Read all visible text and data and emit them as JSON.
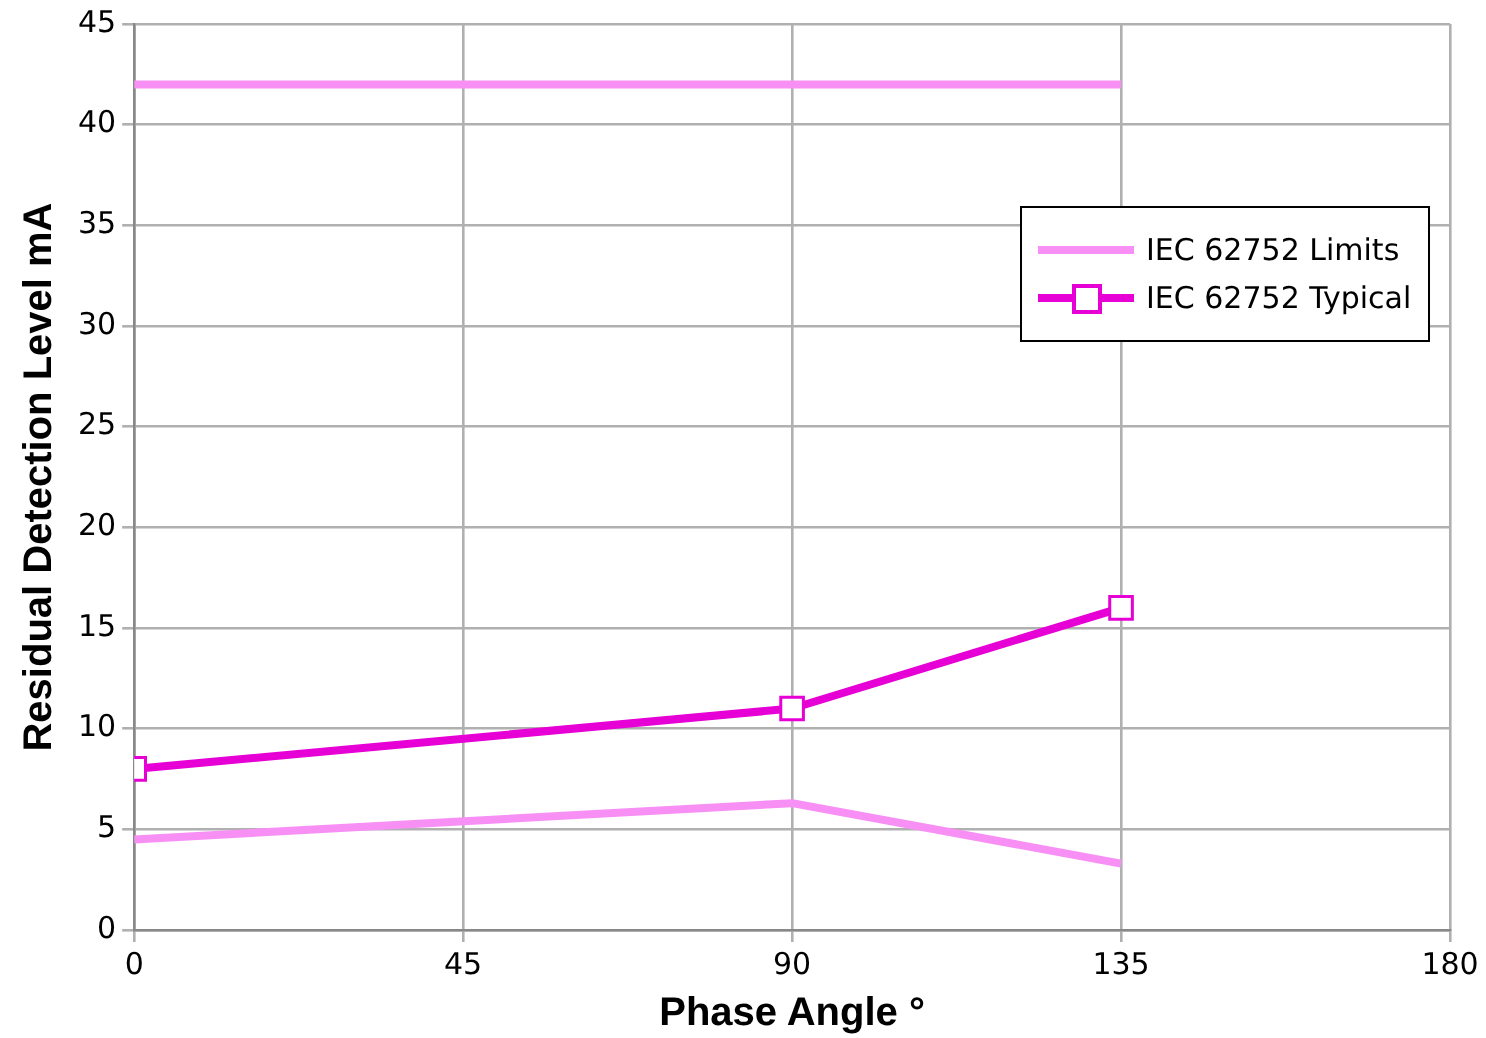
{
  "chart_data": {
    "type": "line",
    "xlabel": "Phase Angle °",
    "ylabel": "Residual Detection Level mA",
    "xlim": [
      0,
      180
    ],
    "xticks": [
      0,
      45,
      90,
      135,
      180
    ],
    "ylim": [
      0,
      45
    ],
    "yticks": [
      0,
      5,
      10,
      15,
      20,
      25,
      30,
      35,
      40,
      45
    ],
    "grid": true,
    "legend": "right",
    "line_style": "solid",
    "series": [
      {
        "name": "IEC 62752 Limits",
        "color": "#f78ff5",
        "x": [
          0,
          90,
          135
        ],
        "values": [
          42,
          42,
          42
        ],
        "marker": "none"
      },
      {
        "color": "#f78ff5",
        "x": [
          0,
          90,
          135
        ],
        "values": [
          4.5,
          6.3,
          3.3
        ],
        "marker": "none"
      },
      {
        "name": "IEC 62752 Typical",
        "color": "#e600d6",
        "x": [
          0,
          90,
          135
        ],
        "values": [
          8,
          11,
          16
        ],
        "marker": "square"
      }
    ]
  }
}
